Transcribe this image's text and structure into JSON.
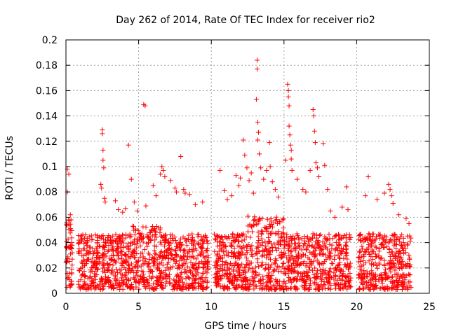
{
  "chart_data": {
    "type": "scatter",
    "title": "Day 262 of 2014, Rate Of TEC Index for receiver rio2",
    "xlabel": "GPS time / hours",
    "ylabel": "ROTI / TECUs",
    "xlim": [
      0,
      25
    ],
    "ylim": [
      0,
      0.2
    ],
    "xticks": [
      0,
      5,
      10,
      15,
      20,
      25
    ],
    "yticks": [
      0,
      0.02,
      0.04,
      0.06,
      0.08,
      0.1,
      0.12,
      0.14,
      0.16,
      0.18,
      0.2
    ],
    "xtick_labels": [
      "0",
      "5",
      "10",
      "15",
      "20",
      "25"
    ],
    "ytick_labels": [
      "0",
      "0.02",
      "0.04",
      "0.06",
      "0.08",
      "0.1",
      "0.12",
      "0.14",
      "0.16",
      "0.18",
      "0.2"
    ],
    "grid": true,
    "marker": "+",
    "color": "#ff0000",
    "data_gaps_hours": [
      [
        0.45,
        0.85
      ],
      [
        9.8,
        10.2
      ],
      [
        19.6,
        20.1
      ]
    ],
    "series": [
      {
        "name": "ROTI",
        "points": [
          [
            0.1,
            0.098
          ],
          [
            0.1,
            0.08
          ],
          [
            0.2,
            0.094
          ],
          [
            0.3,
            0.062
          ],
          [
            0.35,
            0.058
          ],
          [
            2.4,
            0.086
          ],
          [
            2.45,
            0.083
          ],
          [
            2.5,
            0.129
          ],
          [
            2.5,
            0.126
          ],
          [
            2.55,
            0.113
          ],
          [
            2.55,
            0.105
          ],
          [
            2.6,
            0.099
          ],
          [
            2.65,
            0.075
          ],
          [
            2.7,
            0.072
          ],
          [
            3.4,
            0.073
          ],
          [
            3.6,
            0.066
          ],
          [
            3.9,
            0.064
          ],
          [
            4.1,
            0.067
          ],
          [
            4.3,
            0.117
          ],
          [
            4.5,
            0.09
          ],
          [
            4.7,
            0.072
          ],
          [
            4.9,
            0.065
          ],
          [
            5.35,
            0.149
          ],
          [
            5.45,
            0.148
          ],
          [
            5.5,
            0.069
          ],
          [
            6.0,
            0.085
          ],
          [
            6.2,
            0.077
          ],
          [
            6.5,
            0.094
          ],
          [
            6.6,
            0.1
          ],
          [
            6.7,
            0.097
          ],
          [
            6.8,
            0.092
          ],
          [
            7.2,
            0.089
          ],
          [
            7.5,
            0.083
          ],
          [
            7.6,
            0.08
          ],
          [
            7.9,
            0.108
          ],
          [
            8.1,
            0.082
          ],
          [
            8.2,
            0.079
          ],
          [
            8.5,
            0.078
          ],
          [
            8.9,
            0.07
          ],
          [
            9.4,
            0.072
          ],
          [
            10.6,
            0.097
          ],
          [
            10.9,
            0.081
          ],
          [
            11.1,
            0.074
          ],
          [
            11.4,
            0.077
          ],
          [
            11.7,
            0.093
          ],
          [
            11.9,
            0.085
          ],
          [
            12.0,
            0.091
          ],
          [
            12.2,
            0.121
          ],
          [
            12.3,
            0.109
          ],
          [
            12.45,
            0.099
          ],
          [
            12.6,
            0.089
          ],
          [
            12.75,
            0.095
          ],
          [
            12.9,
            0.079
          ],
          [
            13.15,
            0.184
          ],
          [
            13.15,
            0.177
          ],
          [
            13.1,
            0.153
          ],
          [
            13.2,
            0.135
          ],
          [
            13.25,
            0.127
          ],
          [
            13.2,
            0.121
          ],
          [
            13.3,
            0.11
          ],
          [
            13.4,
            0.099
          ],
          [
            13.6,
            0.09
          ],
          [
            13.8,
            0.097
          ],
          [
            14.0,
            0.119
          ],
          [
            14.05,
            0.1
          ],
          [
            14.2,
            0.088
          ],
          [
            14.4,
            0.082
          ],
          [
            14.6,
            0.076
          ],
          [
            15.1,
            0.105
          ],
          [
            15.25,
            0.165
          ],
          [
            15.3,
            0.16
          ],
          [
            15.3,
            0.155
          ],
          [
            15.35,
            0.148
          ],
          [
            15.35,
            0.132
          ],
          [
            15.4,
            0.125
          ],
          [
            15.45,
            0.117
          ],
          [
            15.5,
            0.113
          ],
          [
            15.5,
            0.106
          ],
          [
            15.55,
            0.097
          ],
          [
            15.9,
            0.09
          ],
          [
            16.3,
            0.082
          ],
          [
            16.5,
            0.08
          ],
          [
            16.8,
            0.097
          ],
          [
            17.0,
            0.145
          ],
          [
            17.05,
            0.14
          ],
          [
            17.1,
            0.128
          ],
          [
            17.15,
            0.119
          ],
          [
            17.2,
            0.103
          ],
          [
            17.3,
            0.099
          ],
          [
            17.4,
            0.092
          ],
          [
            17.7,
            0.118
          ],
          [
            17.8,
            0.101
          ],
          [
            18.0,
            0.082
          ],
          [
            18.2,
            0.065
          ],
          [
            18.5,
            0.06
          ],
          [
            19.0,
            0.068
          ],
          [
            19.3,
            0.084
          ],
          [
            19.4,
            0.066
          ],
          [
            20.6,
            0.077
          ],
          [
            20.8,
            0.092
          ],
          [
            21.4,
            0.074
          ],
          [
            21.9,
            0.079
          ],
          [
            22.2,
            0.086
          ],
          [
            22.3,
            0.082
          ],
          [
            22.4,
            0.077
          ],
          [
            22.5,
            0.071
          ],
          [
            22.9,
            0.062
          ],
          [
            23.4,
            0.059
          ],
          [
            23.6,
            0.055
          ]
        ]
      }
    ]
  }
}
